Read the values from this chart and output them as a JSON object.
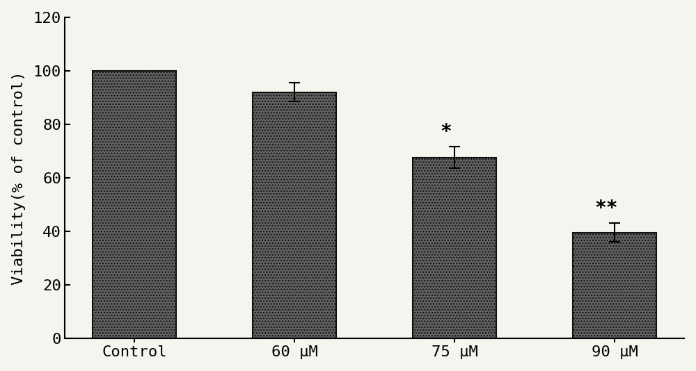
{
  "categories": [
    "Control",
    "60 μM",
    "75 μM",
    "90 μM"
  ],
  "values": [
    100,
    92,
    67.5,
    39.5
  ],
  "errors": [
    0,
    3.5,
    4.0,
    3.5
  ],
  "bar_color": "#606060",
  "bar_edge_color": "#111111",
  "ylabel": "Viability(% of control)",
  "ylim": [
    0,
    120
  ],
  "yticks": [
    0,
    20,
    40,
    60,
    80,
    100,
    120
  ],
  "annotations": [
    {
      "bar_idx": 2,
      "text": "*"
    },
    {
      "bar_idx": 3,
      "text": "**"
    }
  ],
  "background_color": "#f5f5f0",
  "bar_width": 0.52,
  "axis_fontsize": 16,
  "tick_fontsize": 16,
  "annotation_fontsize": 20,
  "bar_spacing": 1.0
}
